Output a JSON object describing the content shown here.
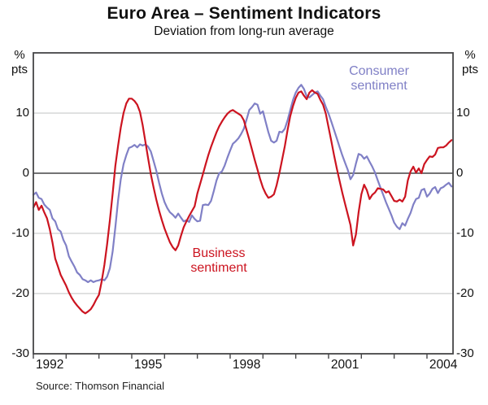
{
  "title": "Euro Area – Sentiment Indicators",
  "subtitle": "Deviation from long-run average",
  "unit_left": {
    "line1": "%",
    "line2": "pts"
  },
  "unit_right": {
    "line1": "%",
    "line2": "pts"
  },
  "source": "Source: Thomson Financial",
  "series_labels": {
    "consumer_line1": "Consumer",
    "consumer_line2": "sentiment",
    "business_line1": "Business",
    "business_line2": "sentiment"
  },
  "colors": {
    "consumer": "#8080c6",
    "business": "#cc1420",
    "grid": "#d2d4d4",
    "axis": "#454547",
    "text": "#111111"
  },
  "chart_data": {
    "type": "line",
    "title": "Euro Area – Sentiment Indicators",
    "subtitle": "Deviation from long-run average",
    "unit": "% pts, deviation from long-run average",
    "x_start_year": 1992.0,
    "x_step_months": 1,
    "ylim": [
      -30,
      20
    ],
    "y_ticks": [
      10,
      0,
      -10,
      -20,
      -30
    ],
    "x_axis_ticks": [
      1992,
      1993,
      1994,
      1995,
      1996,
      1997,
      1998,
      1999,
      2000,
      2001,
      2002,
      2003,
      2004
    ],
    "x_labels": [
      {
        "text": "1992",
        "year": 1992
      },
      {
        "text": "1995",
        "year": 1995
      },
      {
        "text": "1998",
        "year": 1998
      },
      {
        "text": "2001",
        "year": 2001
      },
      {
        "text": "2004",
        "year": 2004
      }
    ],
    "grid": "horizontal-only",
    "legend_position": "inline-annotations",
    "series": [
      {
        "name": "Consumer sentiment",
        "color_key": "consumer",
        "values": [
          -3.6,
          -3.2,
          -4.1,
          -4.3,
          -5.2,
          -5.7,
          -6.1,
          -7.5,
          -8.0,
          -9.3,
          -9.7,
          -11.1,
          -12.0,
          -13.8,
          -14.7,
          -15.5,
          -16.5,
          -16.9,
          -17.6,
          -17.8,
          -18.1,
          -17.8,
          -18.1,
          -17.9,
          -17.8,
          -17.6,
          -17.8,
          -17.2,
          -15.8,
          -13.0,
          -9.0,
          -4.5,
          -1.0,
          1.5,
          3.0,
          4.2,
          4.4,
          4.7,
          4.3,
          4.8,
          4.6,
          4.8,
          4.4,
          3.6,
          2.0,
          0.4,
          -1.6,
          -3.4,
          -4.8,
          -5.8,
          -6.5,
          -6.9,
          -7.4,
          -6.7,
          -7.4,
          -8.0,
          -7.8,
          -8.1,
          -7.0,
          -7.6,
          -8.0,
          -7.9,
          -5.3,
          -5.2,
          -5.3,
          -4.6,
          -3.0,
          -1.2,
          0.0,
          0.3,
          1.3,
          2.6,
          3.8,
          4.9,
          5.3,
          5.8,
          6.5,
          7.4,
          8.9,
          10.5,
          11.0,
          11.6,
          11.4,
          9.9,
          10.3,
          8.5,
          6.8,
          5.4,
          5.1,
          5.4,
          6.9,
          6.8,
          7.4,
          8.8,
          10.5,
          12.2,
          13.4,
          14.2,
          14.7,
          14.0,
          12.8,
          12.6,
          13.0,
          13.4,
          13.6,
          12.9,
          12.3,
          11.0,
          9.9,
          8.6,
          7.2,
          5.8,
          4.4,
          3.0,
          1.8,
          0.6,
          -1.0,
          -0.3,
          1.6,
          3.2,
          3.0,
          2.4,
          2.8,
          1.9,
          1.1,
          0.1,
          -1.2,
          -2.4,
          -3.6,
          -4.8,
          -5.9,
          -7.0,
          -8.2,
          -8.9,
          -9.3,
          -8.3,
          -8.7,
          -7.6,
          -6.6,
          -5.2,
          -4.3,
          -4.1,
          -2.8,
          -2.6,
          -3.9,
          -3.4,
          -2.6,
          -2.3,
          -3.3,
          -2.5,
          -2.3,
          -1.9,
          -1.6,
          -2.2
        ]
      },
      {
        "name": "Business sentiment",
        "color_key": "business",
        "values": [
          -5.7,
          -4.8,
          -6.1,
          -5.4,
          -6.5,
          -7.5,
          -9.3,
          -11.5,
          -14.2,
          -15.5,
          -16.9,
          -17.8,
          -18.7,
          -19.8,
          -20.7,
          -21.4,
          -22.0,
          -22.5,
          -23.0,
          -23.3,
          -23.0,
          -22.6,
          -21.9,
          -21.0,
          -20.2,
          -18.0,
          -15.2,
          -11.8,
          -7.8,
          -3.4,
          1.2,
          4.6,
          7.6,
          10.0,
          11.6,
          12.4,
          12.4,
          12.0,
          11.4,
          10.2,
          8.0,
          5.2,
          2.4,
          -0.2,
          -2.4,
          -4.4,
          -6.2,
          -7.8,
          -9.2,
          -10.4,
          -11.5,
          -12.3,
          -12.8,
          -12.0,
          -10.4,
          -9.0,
          -8.0,
          -7.1,
          -6.3,
          -5.5,
          -3.4,
          -1.8,
          -0.2,
          1.4,
          3.0,
          4.4,
          5.6,
          6.8,
          7.8,
          8.6,
          9.3,
          9.9,
          10.3,
          10.5,
          10.2,
          9.9,
          9.6,
          8.8,
          7.2,
          5.6,
          3.9,
          2.2,
          0.6,
          -1.0,
          -2.4,
          -3.4,
          -4.1,
          -3.9,
          -3.5,
          -2.0,
          0.0,
          2.2,
          4.5,
          7.2,
          9.5,
          11.2,
          12.5,
          13.4,
          13.6,
          12.9,
          12.3,
          13.4,
          13.8,
          13.4,
          13.2,
          12.2,
          11.4,
          9.9,
          7.6,
          5.4,
          3.0,
          0.8,
          -1.2,
          -3.2,
          -5.0,
          -6.8,
          -8.6,
          -12.0,
          -10.2,
          -6.5,
          -3.5,
          -1.9,
          -2.8,
          -4.3,
          -3.6,
          -3.2,
          -2.5,
          -2.6,
          -2.7,
          -3.2,
          -3.0,
          -3.8,
          -4.6,
          -4.7,
          -4.4,
          -4.7,
          -3.9,
          -1.2,
          0.3,
          1.1,
          0.1,
          0.8,
          0.0,
          1.5,
          2.2,
          2.8,
          2.7,
          3.1,
          4.2,
          4.3,
          4.3,
          4.6,
          5.1,
          5.5
        ]
      }
    ]
  }
}
